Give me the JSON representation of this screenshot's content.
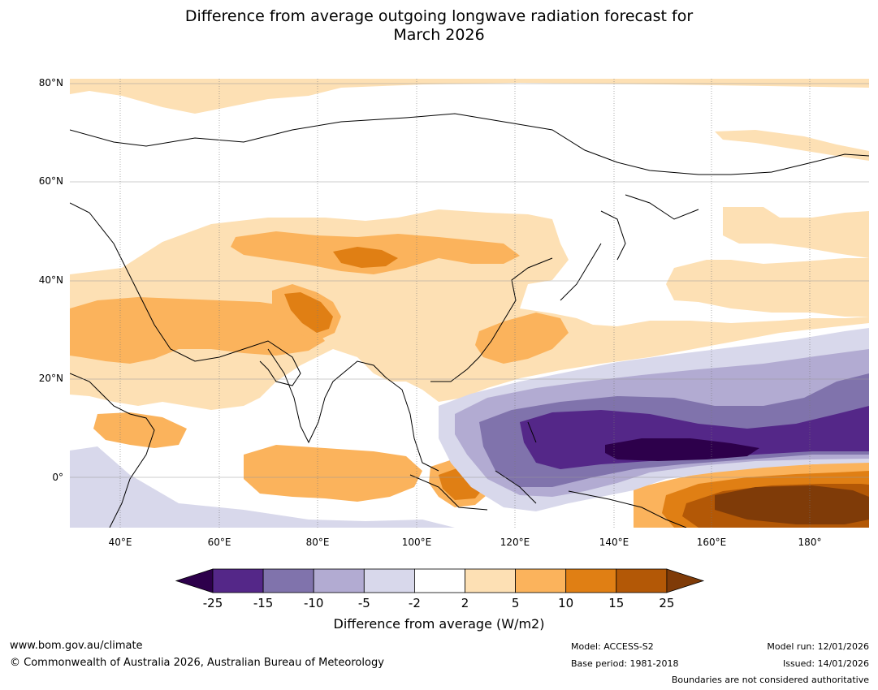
{
  "title": {
    "line1": "Difference from average outgoing longwave radiation forecast for",
    "line2": "March 2026"
  },
  "map": {
    "lat_labels": [
      "80°N",
      "60°N",
      "40°N",
      "20°N",
      "0°"
    ],
    "lon_labels": [
      "40°E",
      "60°E",
      "80°E",
      "100°E",
      "120°E",
      "140°E",
      "160°E",
      "180°"
    ],
    "colors": {
      "ocean_land_base": "#ffffff",
      "pos_2_5": "#fde0b4",
      "pos_5_10": "#fbb35c",
      "pos_10_15": "#e07f14",
      "pos_15_25": "#b35806",
      "pos_gt25": "#7f3b08",
      "neg_2_5": "#d8d8eb",
      "neg_5_10": "#b2abd2",
      "neg_10_15": "#8073ac",
      "neg_15_25": "#542788",
      "neg_lt25": "#2d004b",
      "coast": "#000000",
      "border": "#777777"
    }
  },
  "colorbar": {
    "ticks": [
      "-25",
      "-15",
      "-10",
      "-5",
      "-2",
      "2",
      "5",
      "10",
      "15",
      "25"
    ],
    "colors": [
      "#2d004b",
      "#542788",
      "#8073ac",
      "#b2abd2",
      "#d8d8eb",
      "#ffffff",
      "#fde0b4",
      "#fbb35c",
      "#e07f14",
      "#b35806",
      "#7f3b08"
    ],
    "label": "Difference from average (W/m2)"
  },
  "footer": {
    "url": "www.bom.gov.au/climate",
    "copyright": "© Commonwealth of Australia 2026, Australian Bureau of Meteorology",
    "model": "Model: ACCESS-S2",
    "base_period": "Base period: 1981-2018",
    "model_run": "Model run: 12/01/2026",
    "issued": "Issued: 14/01/2026",
    "disclaimer": "Boundaries are not considered authoritative"
  }
}
